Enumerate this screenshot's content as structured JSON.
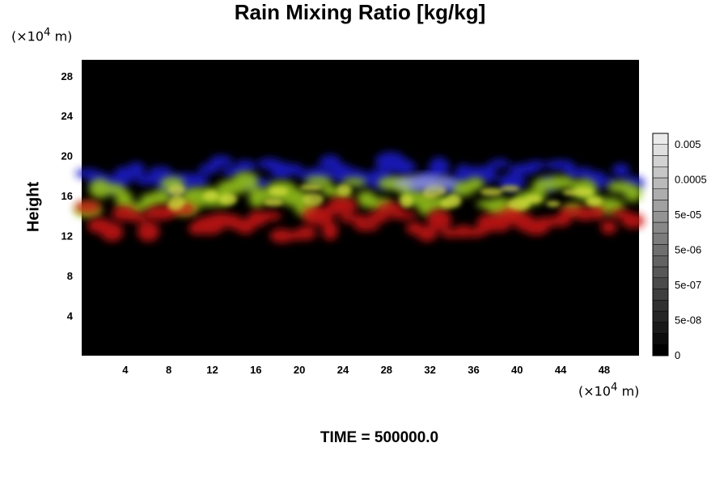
{
  "title": "Rain Mixing Ratio [kg/kg]",
  "y_unit_prefix": "(×10",
  "y_unit_exp": "4",
  "y_unit_suffix": " m)",
  "x_unit_prefix": "(×10",
  "x_unit_exp": "4",
  "x_unit_suffix": " m)",
  "ylabel": "Height",
  "time_label": "TIME = 500000.0",
  "chart_data": {
    "type": "heatmap",
    "title": "Rain Mixing Ratio [kg/kg]",
    "xlabel": "",
    "ylabel": "Height",
    "xlim": [
      0,
      51.2
    ],
    "ylim": [
      0,
      29.6
    ],
    "x_ticks": [
      "4",
      "8",
      "12",
      "16",
      "20",
      "24",
      "28",
      "32",
      "36",
      "40",
      "44",
      "48"
    ],
    "y_ticks": [
      "4",
      "8",
      "12",
      "16",
      "20",
      "24",
      "28"
    ],
    "background": "#000000",
    "bands": [
      {
        "color": "#1a1ad0",
        "y_range": [
          17,
          19.5
        ],
        "x_range": [
          0,
          51.2
        ],
        "description": "blue layer"
      },
      {
        "color": "#9ccc1a",
        "y_range": [
          14.5,
          17.5
        ],
        "x_range": [
          0,
          51.2
        ],
        "description": "green-yellow layer"
      },
      {
        "color": "#d01818",
        "y_range": [
          12,
          15
        ],
        "x_range": [
          0,
          51.2
        ],
        "description": "red layer"
      }
    ],
    "colorbar": {
      "ticks": [
        "0.005",
        "0.0005",
        "5e-05",
        "5e-06",
        "5e-07",
        "5e-08",
        "0"
      ],
      "levels": 20
    }
  }
}
